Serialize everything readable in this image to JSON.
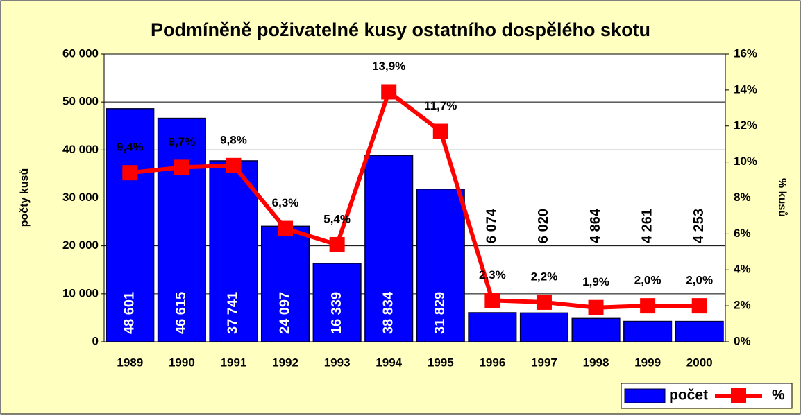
{
  "chart_data": {
    "type": "bar_line",
    "title": "Podmíněně poživatelné kusy ostatního dospělého skotu",
    "y_label": "počty kusů",
    "y2_label": "% kusů",
    "categories": [
      "1989",
      "1990",
      "1991",
      "1992",
      "1993",
      "1994",
      "1995",
      "1996",
      "1997",
      "1998",
      "1999",
      "2000"
    ],
    "series": [
      {
        "name": "počet",
        "color": "#0000ff",
        "axis": "y",
        "values": [
          48601,
          46615,
          37741,
          24097,
          16339,
          38834,
          31829,
          6074,
          6020,
          4864,
          4261,
          4253
        ],
        "value_labels": [
          "48 601",
          "46 615",
          "37 741",
          "24 097",
          "16 339",
          "38 834",
          "31 829",
          "6 074",
          "6 020",
          "4 864",
          "4 261",
          "4 253"
        ]
      },
      {
        "name": "%",
        "color": "#ff0000",
        "axis": "y2",
        "values": [
          9.4,
          9.7,
          9.8,
          6.3,
          5.4,
          13.9,
          11.7,
          2.3,
          2.2,
          1.9,
          2.0,
          2.0
        ],
        "value_labels": [
          "9,4%",
          "9,7%",
          "9,8%",
          "6,3%",
          "5,4%",
          "13,9%",
          "11,7%",
          "2,3%",
          "2,2%",
          "1,9%",
          "2,0%",
          "2,0%"
        ]
      }
    ],
    "ylim": [
      0,
      60000
    ],
    "yticks": [
      0,
      {
        "value": 10000,
        "label": "10 000"
      },
      {
        "value": 20000,
        "label": "20 000"
      },
      {
        "value": 30000,
        "label": "30 000"
      },
      {
        "value": 40000,
        "label": "40 000"
      },
      {
        "value": 50000,
        "label": "50 000"
      },
      {
        "value": 60000,
        "label": "60 000"
      }
    ],
    "y2lim": [
      0,
      16
    ],
    "y2ticks": [
      {
        "value": 0,
        "label": "0%"
      },
      {
        "value": 2,
        "label": "2%"
      },
      {
        "value": 4,
        "label": "4%"
      },
      {
        "value": 6,
        "label": "6%"
      },
      {
        "value": 8,
        "label": "8%"
      },
      {
        "value": 10,
        "label": "10%"
      },
      {
        "value": 12,
        "label": "12%"
      },
      {
        "value": 14,
        "label": "14%"
      },
      {
        "value": 16,
        "label": "16%"
      }
    ],
    "grid": true,
    "legend": "bottom-right"
  }
}
